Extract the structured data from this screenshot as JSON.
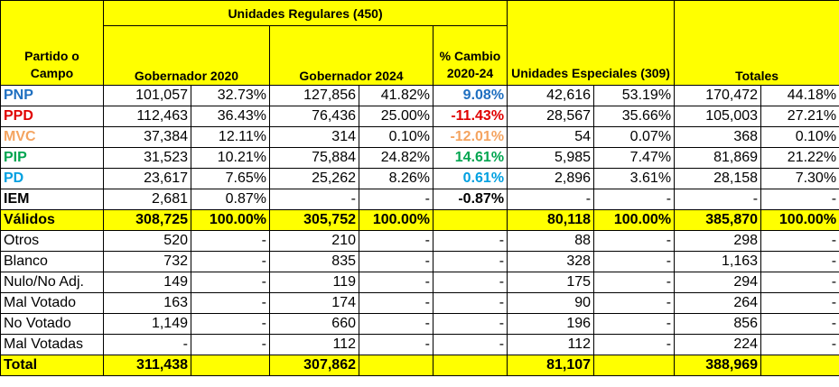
{
  "header": {
    "partido_label": "Partido o Campo",
    "regulares_label": "Unidades Regulares (450)",
    "gob2020_label": "Gobernador 2020",
    "gob2024_label": "Gobernador 2024",
    "cambio_label": "% Cambio 2020-24",
    "especiales_label": "Unidades Especiales (309)",
    "totales_label": "Totales"
  },
  "colors": {
    "PNP": "#1f6fc0",
    "PPD": "#e00000",
    "MVC": "#f4a460",
    "PIP": "#00a550",
    "PD": "#00a0e0",
    "IEM": "#000000",
    "highlight": "#ffff00"
  },
  "parties": [
    {
      "name": "PNP",
      "v2020": "101,057",
      "p2020": "32.73%",
      "v2024": "127,856",
      "p2024": "41.82%",
      "change": "9.08%",
      "vesp": "42,616",
      "pesp": "53.19%",
      "vtot": "170,472",
      "ptot": "44.18%"
    },
    {
      "name": "PPD",
      "v2020": "112,463",
      "p2020": "36.43%",
      "v2024": "76,436",
      "p2024": "25.00%",
      "change": "-11.43%",
      "vesp": "28,567",
      "pesp": "35.66%",
      "vtot": "105,003",
      "ptot": "27.21%"
    },
    {
      "name": "MVC",
      "v2020": "37,384",
      "p2020": "12.11%",
      "v2024": "314",
      "p2024": "0.10%",
      "change": "-12.01%",
      "vesp": "54",
      "pesp": "0.07%",
      "vtot": "368",
      "ptot": "0.10%"
    },
    {
      "name": "PIP",
      "v2020": "31,523",
      "p2020": "10.21%",
      "v2024": "75,884",
      "p2024": "24.82%",
      "change": "14.61%",
      "vesp": "5,985",
      "pesp": "7.47%",
      "vtot": "81,869",
      "ptot": "21.22%"
    },
    {
      "name": "PD",
      "v2020": "23,617",
      "p2020": "7.65%",
      "v2024": "25,262",
      "p2024": "8.26%",
      "change": "0.61%",
      "vesp": "2,896",
      "pesp": "3.61%",
      "vtot": "28,158",
      "ptot": "7.30%"
    },
    {
      "name": "IEM",
      "v2020": "2,681",
      "p2020": "0.87%",
      "v2024": "-",
      "p2024": "-",
      "change": "-0.87%",
      "vesp": "-",
      "pesp": "-",
      "vtot": "-",
      "ptot": "-"
    }
  ],
  "validos": {
    "name": "Válidos",
    "v2020": "308,725",
    "p2020": "100.00%",
    "v2024": "305,752",
    "p2024": "100.00%",
    "change": "",
    "vesp": "80,118",
    "pesp": "100.00%",
    "vtot": "385,870",
    "ptot": "100.00%"
  },
  "others": [
    {
      "name": "Otros",
      "v2020": "520",
      "p2020": "-",
      "v2024": "210",
      "p2024": "-",
      "change": "-",
      "vesp": "88",
      "pesp": "-",
      "vtot": "298",
      "ptot": "-"
    },
    {
      "name": "Blanco",
      "v2020": "732",
      "p2020": "-",
      "v2024": "835",
      "p2024": "-",
      "change": "-",
      "vesp": "328",
      "pesp": "-",
      "vtot": "1,163",
      "ptot": "-"
    },
    {
      "name": "Nulo/No Adj.",
      "v2020": "149",
      "p2020": "-",
      "v2024": "119",
      "p2024": "-",
      "change": "-",
      "vesp": "175",
      "pesp": "-",
      "vtot": "294",
      "ptot": "-"
    },
    {
      "name": "Mal Votado",
      "v2020": "163",
      "p2020": "-",
      "v2024": "174",
      "p2024": "-",
      "change": "-",
      "vesp": "90",
      "pesp": "-",
      "vtot": "264",
      "ptot": "-"
    },
    {
      "name": "No Votado",
      "v2020": "1,149",
      "p2020": "-",
      "v2024": "660",
      "p2024": "-",
      "change": "-",
      "vesp": "196",
      "pesp": "-",
      "vtot": "856",
      "ptot": "-"
    },
    {
      "name": "Mal Votadas",
      "v2020": "-",
      "p2020": "-",
      "v2024": "112",
      "p2024": "-",
      "change": "-",
      "vesp": "112",
      "pesp": "-",
      "vtot": "224",
      "ptot": "-"
    }
  ],
  "total": {
    "name": "Total",
    "v2020": "311,438",
    "p2020": "",
    "v2024": "307,862",
    "p2024": "",
    "change": "",
    "vesp": "81,107",
    "pesp": "",
    "vtot": "388,969",
    "ptot": ""
  }
}
